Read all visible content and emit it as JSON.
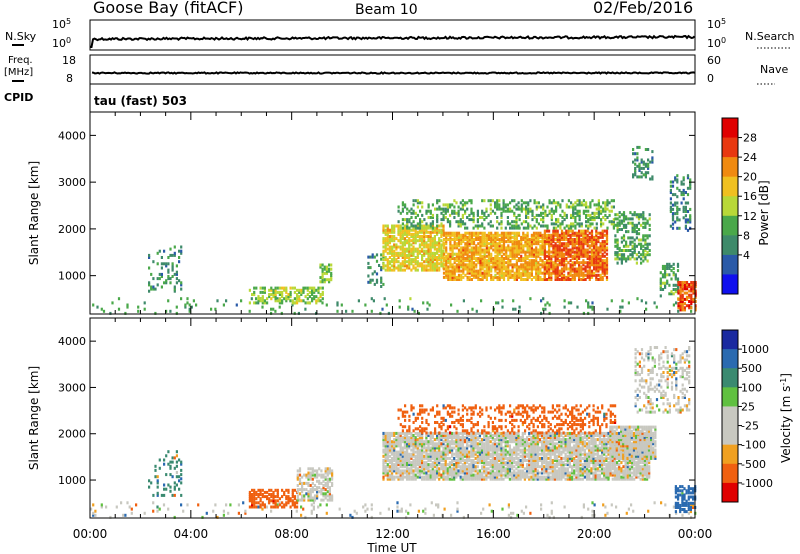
{
  "header": {
    "station": "Goose Bay (fitACF)",
    "beam": "Beam 10",
    "date": "02/Feb/2016"
  },
  "top_panels": {
    "nsky_label": "N.Sky",
    "nsearch_label": "N.Search",
    "nsky_ticks": [
      "10^5",
      "10^0"
    ],
    "nsearch_ticks": [
      "10^5",
      "10^0"
    ],
    "freq_label_line1": "Freq.",
    "freq_label_line2": "[MHz]",
    "freq_ticks": [
      "18",
      "8"
    ],
    "nave_label": "Nave",
    "nave_ticks": [
      "60",
      "0"
    ],
    "cpid_label": "CPID",
    "cpid_text": "tau (fast) 503"
  },
  "colors": {
    "power_scale": [
      "#1010ee",
      "#2a5aa8",
      "#3e8a6a",
      "#4aa84a",
      "#b8d838",
      "#f0c020",
      "#f08a10",
      "#e83810",
      "#e00000"
    ],
    "velocity_scale": [
      "#1a2aa0",
      "#2a6ab0",
      "#3a8a70",
      "#60c040",
      "#c8c8c0",
      "#c8c8c0",
      "#f0a020",
      "#f06010",
      "#e00000"
    ]
  },
  "chart_data": [
    {
      "type": "heatmap",
      "title": "",
      "xlabel": "",
      "ylabel": "Slant Range [km]",
      "x_ticks": [
        "00:00",
        "04:00",
        "08:00",
        "12:00",
        "16:00",
        "20:00",
        "00:00"
      ],
      "y_ticks": [
        "1000",
        "2000",
        "3000",
        "4000"
      ],
      "ylim": [
        180,
        4500
      ],
      "xlim_hours": [
        0,
        24
      ],
      "colorbar_label": "Power [dB]",
      "colorbar_ticks": [
        "28",
        "24",
        "20",
        "16",
        "12",
        "8",
        "4"
      ],
      "colorbar_range": [
        0,
        30
      ],
      "regions": [
        {
          "t0": 0.0,
          "t1": 24.0,
          "r0": 180,
          "r1": 550,
          "value": 10,
          "density": 0.07
        },
        {
          "t0": 2.3,
          "t1": 3.6,
          "r0": 700,
          "r1": 1650,
          "value": 9,
          "density": 0.18
        },
        {
          "t0": 6.3,
          "t1": 9.2,
          "r0": 450,
          "r1": 800,
          "value": 14,
          "density": 0.5
        },
        {
          "t0": 9.1,
          "t1": 9.6,
          "r0": 900,
          "r1": 1300,
          "value": 13,
          "density": 0.55
        },
        {
          "t0": 11.0,
          "t1": 11.6,
          "r0": 800,
          "r1": 1500,
          "value": 9,
          "density": 0.35
        },
        {
          "t0": 11.6,
          "t1": 14.0,
          "r0": 1150,
          "r1": 2100,
          "value": 17,
          "density": 0.72
        },
        {
          "t0": 14.0,
          "t1": 18.0,
          "r0": 950,
          "r1": 1950,
          "value": 20,
          "density": 0.8
        },
        {
          "t0": 18.0,
          "t1": 20.5,
          "r0": 950,
          "r1": 2000,
          "value": 23,
          "density": 0.8
        },
        {
          "t0": 12.2,
          "t1": 17.0,
          "r0": 2050,
          "r1": 2650,
          "value": 11,
          "density": 0.35
        },
        {
          "t0": 17.0,
          "t1": 20.8,
          "r0": 2050,
          "r1": 2650,
          "value": 12,
          "density": 0.42
        },
        {
          "t0": 20.8,
          "t1": 22.2,
          "r0": 1300,
          "r1": 2400,
          "value": 11,
          "density": 0.45
        },
        {
          "t0": 21.5,
          "t1": 22.3,
          "r0": 3100,
          "r1": 3800,
          "value": 9,
          "density": 0.35
        },
        {
          "t0": 23.0,
          "t1": 23.8,
          "r0": 2000,
          "r1": 3200,
          "value": 8,
          "density": 0.3
        },
        {
          "t0": 22.6,
          "t1": 23.3,
          "r0": 600,
          "r1": 1300,
          "value": 11,
          "density": 0.5
        },
        {
          "t0": 23.3,
          "t1": 24.0,
          "r0": 300,
          "r1": 900,
          "value": 24,
          "density": 0.7
        }
      ]
    },
    {
      "type": "heatmap",
      "title": "",
      "xlabel": "Time UT",
      "ylabel": "Slant Range [km]",
      "x_ticks": [
        "00:00",
        "04:00",
        "08:00",
        "12:00",
        "16:00",
        "20:00",
        "00:00"
      ],
      "y_ticks": [
        "1000",
        "2000",
        "3000",
        "4000"
      ],
      "ylim": [
        180,
        4500
      ],
      "xlim_hours": [
        0,
        24
      ],
      "colorbar_label": "Velocity [m s^-1]",
      "colorbar_ticks": [
        "1000",
        "500",
        "100",
        "25",
        "-25",
        "-100",
        "-500",
        "-1000"
      ],
      "colorbar_range": [
        -1000,
        1000
      ],
      "regions": [
        {
          "t0": 0.0,
          "t1": 24.0,
          "r0": 180,
          "r1": 550,
          "value": 0,
          "density": 0.07
        },
        {
          "t0": 2.3,
          "t1": 3.6,
          "r0": 700,
          "r1": 1650,
          "value": 80,
          "density": 0.15
        },
        {
          "t0": 6.3,
          "t1": 8.2,
          "r0": 450,
          "r1": 850,
          "value": -200,
          "density": 0.55
        },
        {
          "t0": 8.2,
          "t1": 9.6,
          "r0": 600,
          "r1": 1300,
          "value": 0,
          "density": 0.55
        },
        {
          "t0": 11.6,
          "t1": 22.2,
          "r0": 1050,
          "r1": 2050,
          "value": 0,
          "density": 0.85
        },
        {
          "t0": 12.2,
          "t1": 20.8,
          "r0": 2050,
          "r1": 2650,
          "value": -150,
          "density": 0.3
        },
        {
          "t0": 20.6,
          "t1": 22.4,
          "r0": 1500,
          "r1": 2200,
          "value": 0,
          "density": 0.9
        },
        {
          "t0": 21.6,
          "t1": 23.8,
          "r0": 2500,
          "r1": 3900,
          "value": 0,
          "density": 0.3
        },
        {
          "t0": 23.2,
          "t1": 24.0,
          "r0": 350,
          "r1": 900,
          "value": 200,
          "density": 0.6
        }
      ]
    }
  ]
}
